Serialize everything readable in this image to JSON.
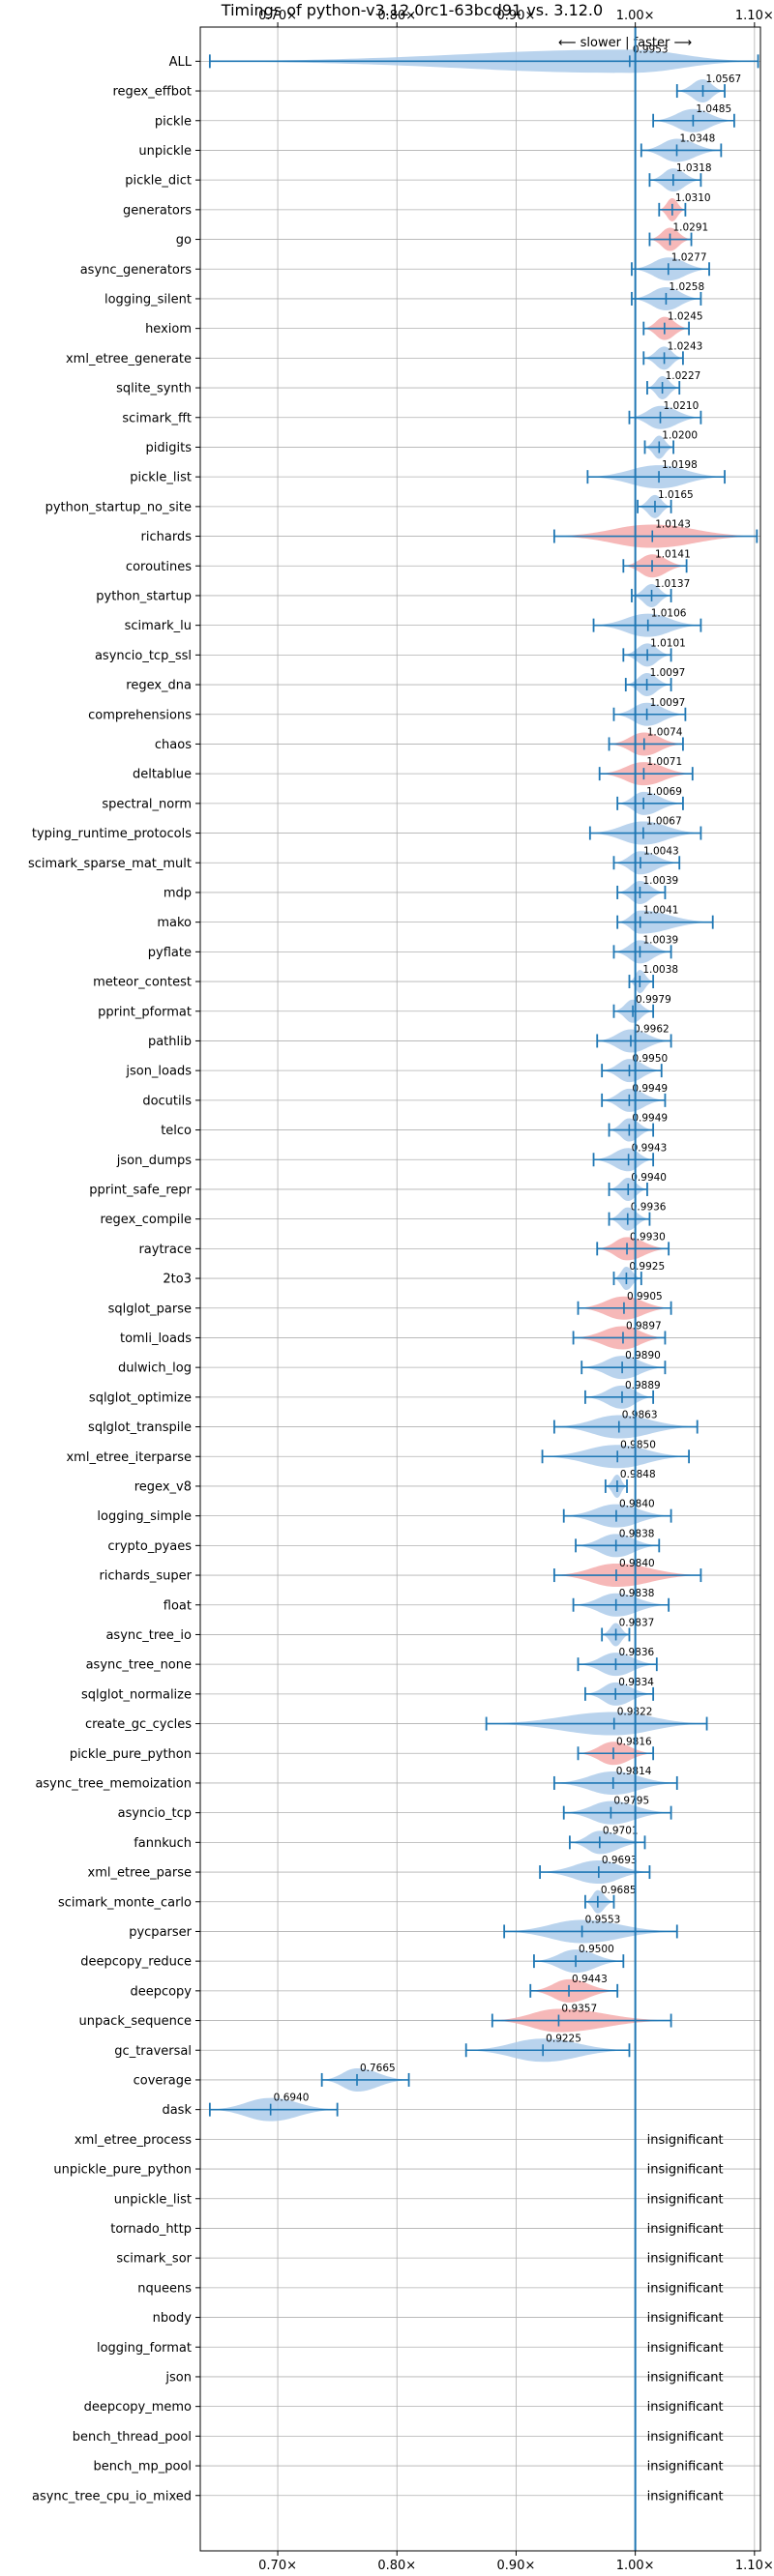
{
  "chart_data": {
    "type": "violin",
    "title": "Timings of python-v3.12.0rc1-63bcd91 vs. 3.12.0",
    "direction_label": "⟵ slower | faster ⟶",
    "xlim": [
      0.635,
      1.105
    ],
    "xticks": [
      {
        "value": 0.7,
        "label": "0.70×"
      },
      {
        "value": 0.8,
        "label": "0.80×"
      },
      {
        "value": 0.9,
        "label": "0.90×"
      },
      {
        "value": 1.0,
        "label": "1.00×"
      },
      {
        "value": 1.1,
        "label": "1.10×"
      }
    ],
    "grid": true,
    "insignificant_label": "insignificant",
    "colors": {
      "faster": "#1f77b4",
      "slower": "#f4a6a6",
      "violin_blue": "#a8c8e8",
      "axis": "#000000",
      "grid": "#b0b0b0"
    },
    "benchmarks": [
      {
        "name": "ALL",
        "value": 0.9953,
        "label": "0.9953",
        "min": 0.643,
        "max": 1.103,
        "color": "blue"
      },
      {
        "name": "regex_effbot",
        "value": 1.0567,
        "label": "1.0567",
        "min": 1.035,
        "max": 1.075,
        "color": "blue"
      },
      {
        "name": "pickle",
        "value": 1.0485,
        "label": "1.0485",
        "min": 1.015,
        "max": 1.083,
        "color": "blue"
      },
      {
        "name": "unpickle",
        "value": 1.0348,
        "label": "1.0348",
        "min": 1.005,
        "max": 1.072,
        "color": "blue"
      },
      {
        "name": "pickle_dict",
        "value": 1.0318,
        "label": "1.0318",
        "min": 1.012,
        "max": 1.055,
        "color": "blue"
      },
      {
        "name": "generators",
        "value": 1.031,
        "label": "1.0310",
        "min": 1.02,
        "max": 1.042,
        "color": "red"
      },
      {
        "name": "go",
        "value": 1.0291,
        "label": "1.0291",
        "min": 1.012,
        "max": 1.047,
        "color": "red"
      },
      {
        "name": "async_generators",
        "value": 1.0277,
        "label": "1.0277",
        "min": 0.997,
        "max": 1.062,
        "color": "blue"
      },
      {
        "name": "logging_silent",
        "value": 1.0258,
        "label": "1.0258",
        "min": 0.997,
        "max": 1.055,
        "color": "blue"
      },
      {
        "name": "hexiom",
        "value": 1.0245,
        "label": "1.0245",
        "min": 1.007,
        "max": 1.045,
        "color": "red"
      },
      {
        "name": "xml_etree_generate",
        "value": 1.0243,
        "label": "1.0243",
        "min": 1.007,
        "max": 1.04,
        "color": "blue"
      },
      {
        "name": "sqlite_synth",
        "value": 1.0227,
        "label": "1.0227",
        "min": 1.01,
        "max": 1.037,
        "color": "blue"
      },
      {
        "name": "scimark_fft",
        "value": 1.021,
        "label": "1.0210",
        "min": 0.995,
        "max": 1.055,
        "color": "blue"
      },
      {
        "name": "pidigits",
        "value": 1.02,
        "label": "1.0200",
        "min": 1.008,
        "max": 1.032,
        "color": "blue"
      },
      {
        "name": "pickle_list",
        "value": 1.0198,
        "label": "1.0198",
        "min": 0.96,
        "max": 1.075,
        "color": "blue"
      },
      {
        "name": "python_startup_no_site",
        "value": 1.0165,
        "label": "1.0165",
        "min": 1.002,
        "max": 1.03,
        "color": "blue"
      },
      {
        "name": "richards",
        "value": 1.0143,
        "label": "1.0143",
        "min": 0.932,
        "max": 1.102,
        "color": "red"
      },
      {
        "name": "coroutines",
        "value": 1.0141,
        "label": "1.0141",
        "min": 0.99,
        "max": 1.043,
        "color": "red"
      },
      {
        "name": "python_startup",
        "value": 1.0137,
        "label": "1.0137",
        "min": 0.997,
        "max": 1.03,
        "color": "blue"
      },
      {
        "name": "scimark_lu",
        "value": 1.0106,
        "label": "1.0106",
        "min": 0.965,
        "max": 1.055,
        "color": "blue"
      },
      {
        "name": "asyncio_tcp_ssl",
        "value": 1.0101,
        "label": "1.0101",
        "min": 0.99,
        "max": 1.03,
        "color": "blue"
      },
      {
        "name": "regex_dna",
        "value": 1.0097,
        "label": "1.0097",
        "min": 0.992,
        "max": 1.03,
        "color": "blue"
      },
      {
        "name": "comprehensions",
        "value": 1.0097,
        "label": "1.0097",
        "min": 0.982,
        "max": 1.042,
        "color": "blue"
      },
      {
        "name": "chaos",
        "value": 1.0074,
        "label": "1.0074",
        "min": 0.978,
        "max": 1.04,
        "color": "red"
      },
      {
        "name": "deltablue",
        "value": 1.0071,
        "label": "1.0071",
        "min": 0.97,
        "max": 1.048,
        "color": "red"
      },
      {
        "name": "spectral_norm",
        "value": 1.0069,
        "label": "1.0069",
        "min": 0.985,
        "max": 1.04,
        "color": "blue"
      },
      {
        "name": "typing_runtime_protocols",
        "value": 1.0067,
        "label": "1.0067",
        "min": 0.962,
        "max": 1.055,
        "color": "blue"
      },
      {
        "name": "scimark_sparse_mat_mult",
        "value": 1.0043,
        "label": "1.0043",
        "min": 0.982,
        "max": 1.037,
        "color": "blue"
      },
      {
        "name": "mdp",
        "value": 1.0039,
        "label": "1.0039",
        "min": 0.985,
        "max": 1.025,
        "color": "blue"
      },
      {
        "name": "mako",
        "value": 1.0041,
        "label": "1.0041",
        "min": 0.985,
        "max": 1.065,
        "color": "blue"
      },
      {
        "name": "pyflate",
        "value": 1.0039,
        "label": "1.0039",
        "min": 0.982,
        "max": 1.03,
        "color": "blue"
      },
      {
        "name": "meteor_contest",
        "value": 1.0038,
        "label": "1.0038",
        "min": 0.995,
        "max": 1.015,
        "color": "blue"
      },
      {
        "name": "pprint_pformat",
        "value": 0.9979,
        "label": "0.9979",
        "min": 0.982,
        "max": 1.015,
        "color": "blue"
      },
      {
        "name": "pathlib",
        "value": 0.9962,
        "label": "0.9962",
        "min": 0.968,
        "max": 1.03,
        "color": "blue"
      },
      {
        "name": "json_loads",
        "value": 0.995,
        "label": "0.9950",
        "min": 0.972,
        "max": 1.022,
        "color": "blue"
      },
      {
        "name": "docutils",
        "value": 0.9949,
        "label": "0.9949",
        "min": 0.972,
        "max": 1.025,
        "color": "blue"
      },
      {
        "name": "telco",
        "value": 0.9949,
        "label": "0.9949",
        "min": 0.978,
        "max": 1.015,
        "color": "blue"
      },
      {
        "name": "json_dumps",
        "value": 0.9943,
        "label": "0.9943",
        "min": 0.965,
        "max": 1.015,
        "color": "blue"
      },
      {
        "name": "pprint_safe_repr",
        "value": 0.994,
        "label": "0.9940",
        "min": 0.978,
        "max": 1.01,
        "color": "blue"
      },
      {
        "name": "regex_compile",
        "value": 0.9936,
        "label": "0.9936",
        "min": 0.978,
        "max": 1.012,
        "color": "blue"
      },
      {
        "name": "raytrace",
        "value": 0.993,
        "label": "0.9930",
        "min": 0.968,
        "max": 1.028,
        "color": "red"
      },
      {
        "name": "2to3",
        "value": 0.9925,
        "label": "0.9925",
        "min": 0.982,
        "max": 1.005,
        "color": "blue"
      },
      {
        "name": "sqlglot_parse",
        "value": 0.9905,
        "label": "0.9905",
        "min": 0.952,
        "max": 1.03,
        "color": "red"
      },
      {
        "name": "tomli_loads",
        "value": 0.9897,
        "label": "0.9897",
        "min": 0.948,
        "max": 1.025,
        "color": "red"
      },
      {
        "name": "dulwich_log",
        "value": 0.989,
        "label": "0.9890",
        "min": 0.955,
        "max": 1.025,
        "color": "blue"
      },
      {
        "name": "sqlglot_optimize",
        "value": 0.9889,
        "label": "0.9889",
        "min": 0.958,
        "max": 1.015,
        "color": "blue"
      },
      {
        "name": "sqlglot_transpile",
        "value": 0.9863,
        "label": "0.9863",
        "min": 0.932,
        "max": 1.052,
        "color": "blue"
      },
      {
        "name": "xml_etree_iterparse",
        "value": 0.985,
        "label": "0.9850",
        "min": 0.922,
        "max": 1.045,
        "color": "blue"
      },
      {
        "name": "regex_v8",
        "value": 0.9848,
        "label": "0.9848",
        "min": 0.975,
        "max": 0.993,
        "color": "blue"
      },
      {
        "name": "logging_simple",
        "value": 0.984,
        "label": "0.9840",
        "min": 0.94,
        "max": 1.03,
        "color": "blue"
      },
      {
        "name": "crypto_pyaes",
        "value": 0.9838,
        "label": "0.9838",
        "min": 0.95,
        "max": 1.02,
        "color": "blue"
      },
      {
        "name": "richards_super",
        "value": 0.984,
        "label": "0.9840",
        "min": 0.932,
        "max": 1.055,
        "color": "red"
      },
      {
        "name": "float",
        "value": 0.9838,
        "label": "0.9838",
        "min": 0.948,
        "max": 1.028,
        "color": "blue"
      },
      {
        "name": "async_tree_io",
        "value": 0.9837,
        "label": "0.9837",
        "min": 0.972,
        "max": 0.995,
        "color": "blue"
      },
      {
        "name": "async_tree_none",
        "value": 0.9836,
        "label": "0.9836",
        "min": 0.952,
        "max": 1.018,
        "color": "blue"
      },
      {
        "name": "sqlglot_normalize",
        "value": 0.9834,
        "label": "0.9834",
        "min": 0.958,
        "max": 1.015,
        "color": "blue"
      },
      {
        "name": "create_gc_cycles",
        "value": 0.9822,
        "label": "0.9822",
        "min": 0.875,
        "max": 1.06,
        "color": "blue"
      },
      {
        "name": "pickle_pure_python",
        "value": 0.9816,
        "label": "0.9816",
        "min": 0.952,
        "max": 1.015,
        "color": "red"
      },
      {
        "name": "async_tree_memoization",
        "value": 0.9814,
        "label": "0.9814",
        "min": 0.932,
        "max": 1.035,
        "color": "blue"
      },
      {
        "name": "asyncio_tcp",
        "value": 0.9795,
        "label": "0.9795",
        "min": 0.94,
        "max": 1.03,
        "color": "blue"
      },
      {
        "name": "fannkuch",
        "value": 0.9701,
        "label": "0.9701",
        "min": 0.945,
        "max": 1.008,
        "color": "blue"
      },
      {
        "name": "xml_etree_parse",
        "value": 0.9693,
        "label": "0.9693",
        "min": 0.92,
        "max": 1.012,
        "color": "blue"
      },
      {
        "name": "scimark_monte_carlo",
        "value": 0.9685,
        "label": "0.9685",
        "min": 0.958,
        "max": 0.982,
        "color": "blue"
      },
      {
        "name": "pycparser",
        "value": 0.9553,
        "label": "0.9553",
        "min": 0.89,
        "max": 1.035,
        "color": "blue"
      },
      {
        "name": "deepcopy_reduce",
        "value": 0.95,
        "label": "0.9500",
        "min": 0.915,
        "max": 0.99,
        "color": "blue"
      },
      {
        "name": "deepcopy",
        "value": 0.9443,
        "label": "0.9443",
        "min": 0.912,
        "max": 0.985,
        "color": "red"
      },
      {
        "name": "unpack_sequence",
        "value": 0.9357,
        "label": "0.9357",
        "min": 0.88,
        "max": 1.03,
        "color": "red"
      },
      {
        "name": "gc_traversal",
        "value": 0.9225,
        "label": "0.9225",
        "min": 0.858,
        "max": 0.995,
        "color": "blue"
      },
      {
        "name": "coverage",
        "value": 0.7665,
        "label": "0.7665",
        "min": 0.737,
        "max": 0.81,
        "color": "blue"
      },
      {
        "name": "dask",
        "value": 0.694,
        "label": "0.6940",
        "min": 0.643,
        "max": 0.75,
        "color": "blue"
      },
      {
        "name": "xml_etree_process",
        "value": null,
        "label": "insignificant"
      },
      {
        "name": "unpickle_pure_python",
        "value": null,
        "label": "insignificant"
      },
      {
        "name": "unpickle_list",
        "value": null,
        "label": "insignificant"
      },
      {
        "name": "tornado_http",
        "value": null,
        "label": "insignificant"
      },
      {
        "name": "scimark_sor",
        "value": null,
        "label": "insignificant"
      },
      {
        "name": "nqueens",
        "value": null,
        "label": "insignificant"
      },
      {
        "name": "nbody",
        "value": null,
        "label": "insignificant"
      },
      {
        "name": "logging_format",
        "value": null,
        "label": "insignificant"
      },
      {
        "name": "json",
        "value": null,
        "label": "insignificant"
      },
      {
        "name": "deepcopy_memo",
        "value": null,
        "label": "insignificant"
      },
      {
        "name": "bench_thread_pool",
        "value": null,
        "label": "insignificant"
      },
      {
        "name": "bench_mp_pool",
        "value": null,
        "label": "insignificant"
      },
      {
        "name": "async_tree_cpu_io_mixed",
        "value": null,
        "label": "insignificant"
      }
    ]
  }
}
